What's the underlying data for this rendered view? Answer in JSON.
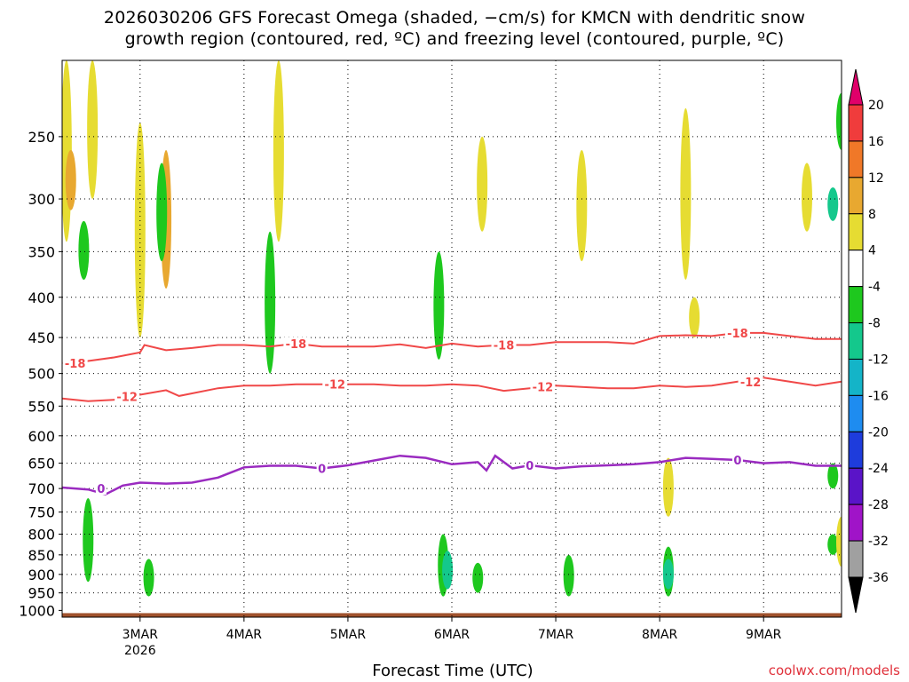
{
  "title": {
    "line1": "2026030206 GFS Forecast Omega (shaded, −cm/s) for KMCN with dendritic snow",
    "line2": "growth region (contoured, red, ºC) and freezing level (contoured, purple, ºC)"
  },
  "x_axis_title": "Forecast Time (UTC)",
  "credit": "coolwx.com/models",
  "colors": {
    "dgz_contour": "#f04848",
    "freezing_contour": "#9a2bc0",
    "ground": "#a0522d",
    "grid": "#000000"
  },
  "colorbar": {
    "levels": [
      "20",
      "16",
      "12",
      "8",
      "4",
      "-4",
      "-8",
      "-12",
      "-16",
      "-20",
      "-24",
      "-28",
      "-32",
      "-36"
    ],
    "colors": [
      "#e0006a",
      "#f03c3c",
      "#f07828",
      "#e8a830",
      "#e6dc32",
      "#ffffff",
      "#1ec81e",
      "#14c88c",
      "#14b4c8",
      "#1e8cf0",
      "#1e3cdc",
      "#5a14c8",
      "#a014c8",
      "#a0a0a0",
      "#000000"
    ]
  },
  "chart_data": {
    "type": "time-height contour",
    "title": "2026030206 GFS Forecast Omega (shaded, −cm/s) for KMCN with dendritic snow growth region (contoured, red, ºC) and freezing level (contoured, purple, ºC)",
    "xlabel": "Forecast Time (UTC)",
    "ylabel": "",
    "y_scale": "log pressure (hPa), inverted",
    "ylim": [
      1020,
      200
    ],
    "xlim": [
      "2026-03-02T06:00Z",
      "2026-03-09T18:00Z"
    ],
    "grid": true,
    "x_ticks": [
      "3MAR",
      "4MAR",
      "5MAR",
      "6MAR",
      "7MAR",
      "8MAR",
      "9MAR"
    ],
    "x_tick_year": "2026",
    "y_ticks": [
      250,
      300,
      350,
      400,
      450,
      500,
      550,
      600,
      650,
      700,
      750,
      800,
      850,
      900,
      950,
      1000
    ],
    "series": [
      {
        "name": "-18",
        "color": "#f04848",
        "points": [
          [
            "2026-03-02T06:00Z",
            485
          ],
          [
            "2026-03-02T12:00Z",
            482
          ],
          [
            "2026-03-02T18:00Z",
            477
          ],
          [
            "2026-03-03T00:00Z",
            470
          ],
          [
            "2026-03-03T01:00Z",
            460
          ],
          [
            "2026-03-03T06:00Z",
            467
          ],
          [
            "2026-03-03T12:00Z",
            464
          ],
          [
            "2026-03-03T18:00Z",
            460
          ],
          [
            "2026-03-04T00:00Z",
            460
          ],
          [
            "2026-03-04T06:00Z",
            462
          ],
          [
            "2026-03-04T12:00Z",
            458
          ],
          [
            "2026-03-04T18:00Z",
            462
          ],
          [
            "2026-03-05T00:00Z",
            462
          ],
          [
            "2026-03-05T06:00Z",
            462
          ],
          [
            "2026-03-05T12:00Z",
            459
          ],
          [
            "2026-03-05T18:00Z",
            464
          ],
          [
            "2026-03-06T00:00Z",
            458
          ],
          [
            "2026-03-06T06:00Z",
            462
          ],
          [
            "2026-03-06T12:00Z",
            460
          ],
          [
            "2026-03-06T18:00Z",
            460
          ],
          [
            "2026-03-07T00:00Z",
            456
          ],
          [
            "2026-03-07T06:00Z",
            456
          ],
          [
            "2026-03-07T12:00Z",
            456
          ],
          [
            "2026-03-07T18:00Z",
            458
          ],
          [
            "2026-03-08T00:00Z",
            448
          ],
          [
            "2026-03-08T06:00Z",
            447
          ],
          [
            "2026-03-08T12:00Z",
            448
          ],
          [
            "2026-03-08T18:00Z",
            444
          ],
          [
            "2026-03-09T00:00Z",
            444
          ],
          [
            "2026-03-09T06:00Z",
            448
          ],
          [
            "2026-03-09T12:00Z",
            452
          ],
          [
            "2026-03-09T18:00Z",
            452
          ]
        ]
      },
      {
        "name": "-12",
        "color": "#f04848",
        "points": [
          [
            "2026-03-02T06:00Z",
            538
          ],
          [
            "2026-03-02T12:00Z",
            542
          ],
          [
            "2026-03-02T18:00Z",
            540
          ],
          [
            "2026-03-03T00:00Z",
            532
          ],
          [
            "2026-03-03T06:00Z",
            525
          ],
          [
            "2026-03-03T09:00Z",
            534
          ],
          [
            "2026-03-03T18:00Z",
            522
          ],
          [
            "2026-03-04T00:00Z",
            518
          ],
          [
            "2026-03-04T06:00Z",
            518
          ],
          [
            "2026-03-04T12:00Z",
            516
          ],
          [
            "2026-03-04T18:00Z",
            516
          ],
          [
            "2026-03-05T00:00Z",
            516
          ],
          [
            "2026-03-05T06:00Z",
            516
          ],
          [
            "2026-03-05T12:00Z",
            518
          ],
          [
            "2026-03-05T18:00Z",
            518
          ],
          [
            "2026-03-06T00:00Z",
            516
          ],
          [
            "2026-03-06T06:00Z",
            518
          ],
          [
            "2026-03-06T12:00Z",
            526
          ],
          [
            "2026-03-06T18:00Z",
            522
          ],
          [
            "2026-03-07T00:00Z",
            518
          ],
          [
            "2026-03-07T06:00Z",
            520
          ],
          [
            "2026-03-07T12:00Z",
            522
          ],
          [
            "2026-03-07T18:00Z",
            522
          ],
          [
            "2026-03-08T00:00Z",
            518
          ],
          [
            "2026-03-08T06:00Z",
            520
          ],
          [
            "2026-03-08T12:00Z",
            518
          ],
          [
            "2026-03-08T18:00Z",
            512
          ],
          [
            "2026-03-09T00:00Z",
            506
          ],
          [
            "2026-03-09T06:00Z",
            512
          ],
          [
            "2026-03-09T12:00Z",
            518
          ],
          [
            "2026-03-09T18:00Z",
            512
          ]
        ]
      },
      {
        "name": "0",
        "color": "#9a2bc0",
        "points": [
          [
            "2026-03-02T06:00Z",
            698
          ],
          [
            "2026-03-02T12:00Z",
            702
          ],
          [
            "2026-03-02T16:00Z",
            712
          ],
          [
            "2026-03-02T20:00Z",
            694
          ],
          [
            "2026-03-03T00:00Z",
            688
          ],
          [
            "2026-03-03T06:00Z",
            690
          ],
          [
            "2026-03-03T12:00Z",
            688
          ],
          [
            "2026-03-03T18:00Z",
            678
          ],
          [
            "2026-03-04T00:00Z",
            658
          ],
          [
            "2026-03-04T06:00Z",
            655
          ],
          [
            "2026-03-04T12:00Z",
            655
          ],
          [
            "2026-03-04T18:00Z",
            660
          ],
          [
            "2026-03-05T00:00Z",
            654
          ],
          [
            "2026-03-05T06:00Z",
            645
          ],
          [
            "2026-03-05T12:00Z",
            636
          ],
          [
            "2026-03-05T18:00Z",
            640
          ],
          [
            "2026-03-06T00:00Z",
            652
          ],
          [
            "2026-03-06T06:00Z",
            648
          ],
          [
            "2026-03-06T08:00Z",
            664
          ],
          [
            "2026-03-06T10:00Z",
            636
          ],
          [
            "2026-03-06T14:00Z",
            660
          ],
          [
            "2026-03-06T18:00Z",
            654
          ],
          [
            "2026-03-07T00:00Z",
            660
          ],
          [
            "2026-03-07T06:00Z",
            656
          ],
          [
            "2026-03-07T12:00Z",
            654
          ],
          [
            "2026-03-07T18:00Z",
            652
          ],
          [
            "2026-03-08T00:00Z",
            648
          ],
          [
            "2026-03-08T06:00Z",
            640
          ],
          [
            "2026-03-08T12:00Z",
            642
          ],
          [
            "2026-03-08T18:00Z",
            644
          ],
          [
            "2026-03-09T00:00Z",
            650
          ],
          [
            "2026-03-09T06:00Z",
            648
          ],
          [
            "2026-03-09T12:00Z",
            655
          ],
          [
            "2026-03-09T18:00Z",
            655
          ]
        ]
      }
    ],
    "contour_labels": [
      {
        "text": "-18",
        "time": "2026-03-02T09:00Z",
        "p": 485
      },
      {
        "text": "-18",
        "time": "2026-03-04T12:00Z",
        "p": 458
      },
      {
        "text": "-18",
        "time": "2026-03-06T12:00Z",
        "p": 460
      },
      {
        "text": "-18",
        "time": "2026-03-08T18:00Z",
        "p": 444
      },
      {
        "text": "-12",
        "time": "2026-03-02T21:00Z",
        "p": 535
      },
      {
        "text": "-12",
        "time": "2026-03-04T21:00Z",
        "p": 516
      },
      {
        "text": "-12",
        "time": "2026-03-06T21:00Z",
        "p": 520
      },
      {
        "text": "-12",
        "time": "2026-03-08T21:00Z",
        "p": 512
      },
      {
        "text": "0",
        "time": "2026-03-02T15:00Z",
        "p": 700
      },
      {
        "text": "0",
        "time": "2026-03-04T18:00Z",
        "p": 660
      },
      {
        "text": "0",
        "time": "2026-03-06T18:00Z",
        "p": 654
      },
      {
        "text": "0",
        "time": "2026-03-08T18:00Z",
        "p": 644
      }
    ],
    "omega_shading": [
      {
        "time": "2026-03-02T07:00Z",
        "p_top": 200,
        "p_bot": 340,
        "value": 6
      },
      {
        "time": "2026-03-02T08:00Z",
        "p_top": 260,
        "p_bot": 310,
        "value": 10
      },
      {
        "time": "2026-03-02T13:00Z",
        "p_top": 200,
        "p_bot": 300,
        "value": 5
      },
      {
        "time": "2026-03-02T11:00Z",
        "p_top": 320,
        "p_bot": 380,
        "value": -8
      },
      {
        "time": "2026-03-03T00:00Z",
        "p_top": 240,
        "p_bot": 450,
        "value": 5
      },
      {
        "time": "2026-03-03T06:00Z",
        "p_top": 260,
        "p_bot": 390,
        "value": 8
      },
      {
        "time": "2026-03-03T05:00Z",
        "p_top": 270,
        "p_bot": 360,
        "value": -6
      },
      {
        "time": "2026-03-04T06:00Z",
        "p_top": 330,
        "p_bot": 500,
        "value": -7
      },
      {
        "time": "2026-03-04T08:00Z",
        "p_top": 200,
        "p_bot": 340,
        "value": 5
      },
      {
        "time": "2026-03-05T21:00Z",
        "p_top": 350,
        "p_bot": 480,
        "value": -8
      },
      {
        "time": "2026-03-06T07:00Z",
        "p_top": 250,
        "p_bot": 330,
        "value": 6
      },
      {
        "time": "2026-03-07T06:00Z",
        "p_top": 260,
        "p_bot": 360,
        "value": 6
      },
      {
        "time": "2026-03-08T06:00Z",
        "p_top": 230,
        "p_bot": 380,
        "value": 6
      },
      {
        "time": "2026-03-08T08:00Z",
        "p_top": 400,
        "p_bot": 450,
        "value": 5
      },
      {
        "time": "2026-03-09T10:00Z",
        "p_top": 270,
        "p_bot": 330,
        "value": 6
      },
      {
        "time": "2026-03-09T16:00Z",
        "p_top": 290,
        "p_bot": 320,
        "value": -12
      },
      {
        "time": "2026-03-09T18:00Z",
        "p_top": 220,
        "p_bot": 260,
        "value": -8
      },
      {
        "time": "2026-03-02T12:00Z",
        "p_top": 720,
        "p_bot": 920,
        "value": -8
      },
      {
        "time": "2026-03-03T02:00Z",
        "p_top": 860,
        "p_bot": 960,
        "value": -8
      },
      {
        "time": "2026-03-05T22:00Z",
        "p_top": 800,
        "p_bot": 960,
        "value": -8
      },
      {
        "time": "2026-03-05T23:00Z",
        "p_top": 840,
        "p_bot": 940,
        "value": -12
      },
      {
        "time": "2026-03-06T06:00Z",
        "p_top": 870,
        "p_bot": 950,
        "value": -8
      },
      {
        "time": "2026-03-07T03:00Z",
        "p_top": 850,
        "p_bot": 960,
        "value": -8
      },
      {
        "time": "2026-03-08T02:00Z",
        "p_top": 830,
        "p_bot": 960,
        "value": -8
      },
      {
        "time": "2026-03-08T02:00Z",
        "p_top": 860,
        "p_bot": 940,
        "value": -12
      },
      {
        "time": "2026-03-08T02:00Z",
        "p_top": 640,
        "p_bot": 760,
        "value": 5
      },
      {
        "time": "2026-03-09T16:00Z",
        "p_top": 650,
        "p_bot": 700,
        "value": -8
      },
      {
        "time": "2026-03-09T16:00Z",
        "p_top": 800,
        "p_bot": 850,
        "value": -8
      },
      {
        "time": "2026-03-09T18:00Z",
        "p_top": 760,
        "p_bot": 880,
        "value": 5
      }
    ]
  }
}
